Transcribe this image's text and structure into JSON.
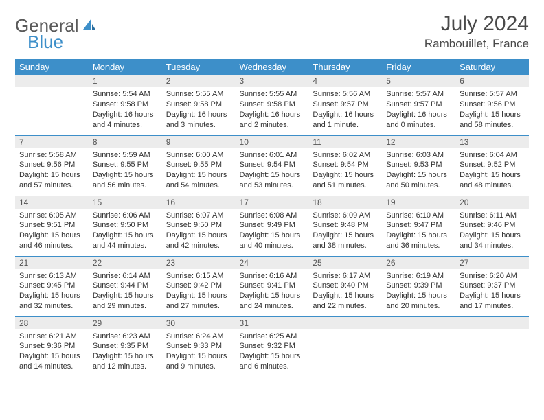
{
  "logo": {
    "part1": "General",
    "part2": "Blue"
  },
  "title": "July 2024",
  "location": "Rambouillet, France",
  "colors": {
    "header_bg": "#3d8fc9",
    "header_fg": "#ffffff",
    "daynum_bg": "#ececec",
    "rule": "#3d8fc9",
    "logo_gray": "#5a5a5a",
    "logo_blue": "#3d8fc9"
  },
  "weekdays": [
    "Sunday",
    "Monday",
    "Tuesday",
    "Wednesday",
    "Thursday",
    "Friday",
    "Saturday"
  ],
  "weeks": [
    [
      {
        "empty": true
      },
      {
        "day": "1",
        "sunrise": "Sunrise: 5:54 AM",
        "sunset": "Sunset: 9:58 PM",
        "daylight": "Daylight: 16 hours and 4 minutes."
      },
      {
        "day": "2",
        "sunrise": "Sunrise: 5:55 AM",
        "sunset": "Sunset: 9:58 PM",
        "daylight": "Daylight: 16 hours and 3 minutes."
      },
      {
        "day": "3",
        "sunrise": "Sunrise: 5:55 AM",
        "sunset": "Sunset: 9:58 PM",
        "daylight": "Daylight: 16 hours and 2 minutes."
      },
      {
        "day": "4",
        "sunrise": "Sunrise: 5:56 AM",
        "sunset": "Sunset: 9:57 PM",
        "daylight": "Daylight: 16 hours and 1 minute."
      },
      {
        "day": "5",
        "sunrise": "Sunrise: 5:57 AM",
        "sunset": "Sunset: 9:57 PM",
        "daylight": "Daylight: 16 hours and 0 minutes."
      },
      {
        "day": "6",
        "sunrise": "Sunrise: 5:57 AM",
        "sunset": "Sunset: 9:56 PM",
        "daylight": "Daylight: 15 hours and 58 minutes."
      }
    ],
    [
      {
        "day": "7",
        "sunrise": "Sunrise: 5:58 AM",
        "sunset": "Sunset: 9:56 PM",
        "daylight": "Daylight: 15 hours and 57 minutes."
      },
      {
        "day": "8",
        "sunrise": "Sunrise: 5:59 AM",
        "sunset": "Sunset: 9:55 PM",
        "daylight": "Daylight: 15 hours and 56 minutes."
      },
      {
        "day": "9",
        "sunrise": "Sunrise: 6:00 AM",
        "sunset": "Sunset: 9:55 PM",
        "daylight": "Daylight: 15 hours and 54 minutes."
      },
      {
        "day": "10",
        "sunrise": "Sunrise: 6:01 AM",
        "sunset": "Sunset: 9:54 PM",
        "daylight": "Daylight: 15 hours and 53 minutes."
      },
      {
        "day": "11",
        "sunrise": "Sunrise: 6:02 AM",
        "sunset": "Sunset: 9:54 PM",
        "daylight": "Daylight: 15 hours and 51 minutes."
      },
      {
        "day": "12",
        "sunrise": "Sunrise: 6:03 AM",
        "sunset": "Sunset: 9:53 PM",
        "daylight": "Daylight: 15 hours and 50 minutes."
      },
      {
        "day": "13",
        "sunrise": "Sunrise: 6:04 AM",
        "sunset": "Sunset: 9:52 PM",
        "daylight": "Daylight: 15 hours and 48 minutes."
      }
    ],
    [
      {
        "day": "14",
        "sunrise": "Sunrise: 6:05 AM",
        "sunset": "Sunset: 9:51 PM",
        "daylight": "Daylight: 15 hours and 46 minutes."
      },
      {
        "day": "15",
        "sunrise": "Sunrise: 6:06 AM",
        "sunset": "Sunset: 9:50 PM",
        "daylight": "Daylight: 15 hours and 44 minutes."
      },
      {
        "day": "16",
        "sunrise": "Sunrise: 6:07 AM",
        "sunset": "Sunset: 9:50 PM",
        "daylight": "Daylight: 15 hours and 42 minutes."
      },
      {
        "day": "17",
        "sunrise": "Sunrise: 6:08 AM",
        "sunset": "Sunset: 9:49 PM",
        "daylight": "Daylight: 15 hours and 40 minutes."
      },
      {
        "day": "18",
        "sunrise": "Sunrise: 6:09 AM",
        "sunset": "Sunset: 9:48 PM",
        "daylight": "Daylight: 15 hours and 38 minutes."
      },
      {
        "day": "19",
        "sunrise": "Sunrise: 6:10 AM",
        "sunset": "Sunset: 9:47 PM",
        "daylight": "Daylight: 15 hours and 36 minutes."
      },
      {
        "day": "20",
        "sunrise": "Sunrise: 6:11 AM",
        "sunset": "Sunset: 9:46 PM",
        "daylight": "Daylight: 15 hours and 34 minutes."
      }
    ],
    [
      {
        "day": "21",
        "sunrise": "Sunrise: 6:13 AM",
        "sunset": "Sunset: 9:45 PM",
        "daylight": "Daylight: 15 hours and 32 minutes."
      },
      {
        "day": "22",
        "sunrise": "Sunrise: 6:14 AM",
        "sunset": "Sunset: 9:44 PM",
        "daylight": "Daylight: 15 hours and 29 minutes."
      },
      {
        "day": "23",
        "sunrise": "Sunrise: 6:15 AM",
        "sunset": "Sunset: 9:42 PM",
        "daylight": "Daylight: 15 hours and 27 minutes."
      },
      {
        "day": "24",
        "sunrise": "Sunrise: 6:16 AM",
        "sunset": "Sunset: 9:41 PM",
        "daylight": "Daylight: 15 hours and 24 minutes."
      },
      {
        "day": "25",
        "sunrise": "Sunrise: 6:17 AM",
        "sunset": "Sunset: 9:40 PM",
        "daylight": "Daylight: 15 hours and 22 minutes."
      },
      {
        "day": "26",
        "sunrise": "Sunrise: 6:19 AM",
        "sunset": "Sunset: 9:39 PM",
        "daylight": "Daylight: 15 hours and 20 minutes."
      },
      {
        "day": "27",
        "sunrise": "Sunrise: 6:20 AM",
        "sunset": "Sunset: 9:37 PM",
        "daylight": "Daylight: 15 hours and 17 minutes."
      }
    ],
    [
      {
        "day": "28",
        "sunrise": "Sunrise: 6:21 AM",
        "sunset": "Sunset: 9:36 PM",
        "daylight": "Daylight: 15 hours and 14 minutes."
      },
      {
        "day": "29",
        "sunrise": "Sunrise: 6:23 AM",
        "sunset": "Sunset: 9:35 PM",
        "daylight": "Daylight: 15 hours and 12 minutes."
      },
      {
        "day": "30",
        "sunrise": "Sunrise: 6:24 AM",
        "sunset": "Sunset: 9:33 PM",
        "daylight": "Daylight: 15 hours and 9 minutes."
      },
      {
        "day": "31",
        "sunrise": "Sunrise: 6:25 AM",
        "sunset": "Sunset: 9:32 PM",
        "daylight": "Daylight: 15 hours and 6 minutes."
      },
      {
        "empty": true
      },
      {
        "empty": true
      },
      {
        "empty": true
      }
    ]
  ]
}
